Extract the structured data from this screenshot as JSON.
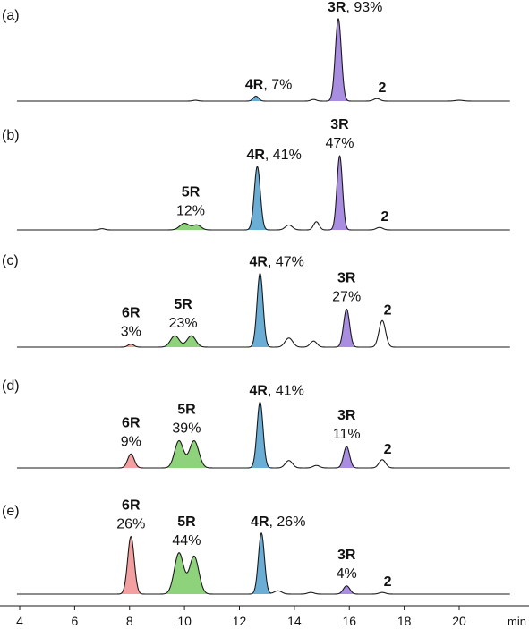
{
  "chart_data": {
    "type": "line",
    "x_unit": "min",
    "xlim": [
      3,
      22.2
    ],
    "x_ticks": [
      4,
      6,
      8,
      10,
      12,
      14,
      16,
      18,
      20
    ],
    "peak_colors": {
      "6R": "#f4a0a0",
      "5R": "#8fd27c",
      "4R": "#6aaed6",
      "3R": "#a98de0",
      "2": "none"
    },
    "panels": [
      {
        "label": "(a)",
        "peaks": [
          {
            "compound": "4R",
            "percent": "7%",
            "rt": 12.6,
            "height": 0.06,
            "width": 0.1,
            "fill": true
          },
          {
            "compound": "3R",
            "percent": "93%",
            "rt": 15.6,
            "height": 1.0,
            "width": 0.11,
            "fill": true
          },
          {
            "compound": "2",
            "percent": "",
            "rt": 17.0,
            "height": 0.03,
            "width": 0.12,
            "fill": false
          }
        ],
        "minor_peaks": [
          {
            "rt": 10.4,
            "height": 0.01,
            "width": 0.1
          },
          {
            "rt": 14.7,
            "height": 0.02,
            "width": 0.1
          },
          {
            "rt": 20.0,
            "height": 0.01,
            "width": 0.15
          }
        ],
        "annotations": [
          {
            "compound": "4R",
            "text": ", 7%",
            "layout": "inline"
          },
          {
            "compound": "3R",
            "text": ", 93%",
            "layout": "inline"
          },
          {
            "compound": "2",
            "text": "",
            "layout": "name"
          }
        ]
      },
      {
        "label": "(b)",
        "peaks": [
          {
            "compound": "5R",
            "percent": "12%",
            "rt": 10.0,
            "height": 0.08,
            "width": 0.17,
            "fill": true
          },
          {
            "compound": "5R",
            "percent": "",
            "rt": 10.45,
            "height": 0.06,
            "width": 0.15,
            "fill": true
          },
          {
            "compound": "4R",
            "percent": "41%",
            "rt": 12.65,
            "height": 0.77,
            "width": 0.11,
            "fill": true
          },
          {
            "compound": "3R",
            "percent": "47%",
            "rt": 15.65,
            "height": 0.9,
            "width": 0.1,
            "fill": true
          },
          {
            "compound": "2",
            "percent": "",
            "rt": 17.1,
            "height": 0.03,
            "width": 0.12,
            "fill": false
          }
        ],
        "minor_peaks": [
          {
            "rt": 7.0,
            "height": 0.015,
            "width": 0.1
          },
          {
            "rt": 13.8,
            "height": 0.06,
            "width": 0.13
          },
          {
            "rt": 14.8,
            "height": 0.1,
            "width": 0.1
          }
        ],
        "annotations": [
          {
            "compound": "5R",
            "text": "12%",
            "layout": "stacked"
          },
          {
            "compound": "4R",
            "text": ", 41%",
            "layout": "inline"
          },
          {
            "compound": "3R",
            "text": "47%",
            "layout": "stacked"
          },
          {
            "compound": "2",
            "text": "",
            "layout": "name"
          }
        ]
      },
      {
        "label": "(c)",
        "peaks": [
          {
            "compound": "6R",
            "percent": "3%",
            "rt": 8.05,
            "height": 0.04,
            "width": 0.11,
            "fill": true
          },
          {
            "compound": "5R",
            "percent": "23%",
            "rt": 9.65,
            "height": 0.15,
            "width": 0.16,
            "fill": true
          },
          {
            "compound": "5R",
            "percent": "",
            "rt": 10.25,
            "height": 0.15,
            "width": 0.16,
            "fill": true
          },
          {
            "compound": "4R",
            "percent": "47%",
            "rt": 12.75,
            "height": 0.97,
            "width": 0.11,
            "fill": true
          },
          {
            "compound": "3R",
            "percent": "27%",
            "rt": 15.9,
            "height": 0.5,
            "width": 0.11,
            "fill": true
          },
          {
            "compound": "2",
            "percent": "",
            "rt": 17.2,
            "height": 0.35,
            "width": 0.12,
            "fill": false
          }
        ],
        "minor_peaks": [
          {
            "rt": 13.8,
            "height": 0.12,
            "width": 0.14
          },
          {
            "rt": 14.7,
            "height": 0.08,
            "width": 0.12
          }
        ],
        "annotations": [
          {
            "compound": "6R",
            "text": "3%",
            "layout": "stacked"
          },
          {
            "compound": "5R",
            "text": "23%",
            "layout": "stacked"
          },
          {
            "compound": "4R",
            "text": ", 47%",
            "layout": "inline"
          },
          {
            "compound": "3R",
            "text": "27%",
            "layout": "stacked"
          },
          {
            "compound": "2",
            "text": "",
            "layout": "name"
          }
        ]
      },
      {
        "label": "(d)",
        "peaks": [
          {
            "compound": "6R",
            "percent": "9%",
            "rt": 8.05,
            "height": 0.17,
            "width": 0.12,
            "fill": true
          },
          {
            "compound": "5R",
            "percent": "39%",
            "rt": 9.8,
            "height": 0.33,
            "width": 0.16,
            "fill": true
          },
          {
            "compound": "5R",
            "percent": "",
            "rt": 10.35,
            "height": 0.33,
            "width": 0.17,
            "fill": true
          },
          {
            "compound": "4R",
            "percent": "41%",
            "rt": 12.75,
            "height": 0.8,
            "width": 0.11,
            "fill": true
          },
          {
            "compound": "3R",
            "percent": "11%",
            "rt": 15.9,
            "height": 0.26,
            "width": 0.11,
            "fill": true
          },
          {
            "compound": "2",
            "percent": "",
            "rt": 17.2,
            "height": 0.1,
            "width": 0.12,
            "fill": false
          }
        ],
        "minor_peaks": [
          {
            "rt": 13.8,
            "height": 0.09,
            "width": 0.13
          },
          {
            "rt": 14.8,
            "height": 0.03,
            "width": 0.12
          }
        ],
        "annotations": [
          {
            "compound": "6R",
            "text": "9%",
            "layout": "stacked"
          },
          {
            "compound": "5R",
            "text": "39%",
            "layout": "stacked"
          },
          {
            "compound": "4R",
            "text": ", 41%",
            "layout": "inline"
          },
          {
            "compound": "3R",
            "text": "11%",
            "layout": "stacked"
          },
          {
            "compound": "2",
            "text": "",
            "layout": "name"
          }
        ]
      },
      {
        "label": "(e)",
        "peaks": [
          {
            "compound": "6R",
            "percent": "26%",
            "rt": 8.05,
            "height": 0.7,
            "width": 0.12,
            "fill": true
          },
          {
            "compound": "5R",
            "percent": "44%",
            "rt": 9.8,
            "height": 0.5,
            "width": 0.17,
            "fill": true
          },
          {
            "compound": "5R",
            "percent": "",
            "rt": 10.35,
            "height": 0.46,
            "width": 0.17,
            "fill": true
          },
          {
            "compound": "4R",
            "percent": "26%",
            "rt": 12.8,
            "height": 0.74,
            "width": 0.11,
            "fill": true
          },
          {
            "compound": "3R",
            "percent": "4%",
            "rt": 15.9,
            "height": 0.1,
            "width": 0.12,
            "fill": true
          },
          {
            "compound": "2",
            "percent": "",
            "rt": 17.2,
            "height": 0.02,
            "width": 0.12,
            "fill": false
          }
        ],
        "minor_peaks": [
          {
            "rt": 13.4,
            "height": 0.04,
            "width": 0.14
          },
          {
            "rt": 14.6,
            "height": 0.02,
            "width": 0.12
          }
        ],
        "annotations": [
          {
            "compound": "6R",
            "text": "26%",
            "layout": "stacked"
          },
          {
            "compound": "5R",
            "text": "44%",
            "layout": "stacked"
          },
          {
            "compound": "4R",
            "text": ", 26%",
            "layout": "inline"
          },
          {
            "compound": "3R",
            "text": "4%",
            "layout": "stacked"
          },
          {
            "compound": "2",
            "text": "",
            "layout": "name"
          }
        ]
      }
    ]
  }
}
